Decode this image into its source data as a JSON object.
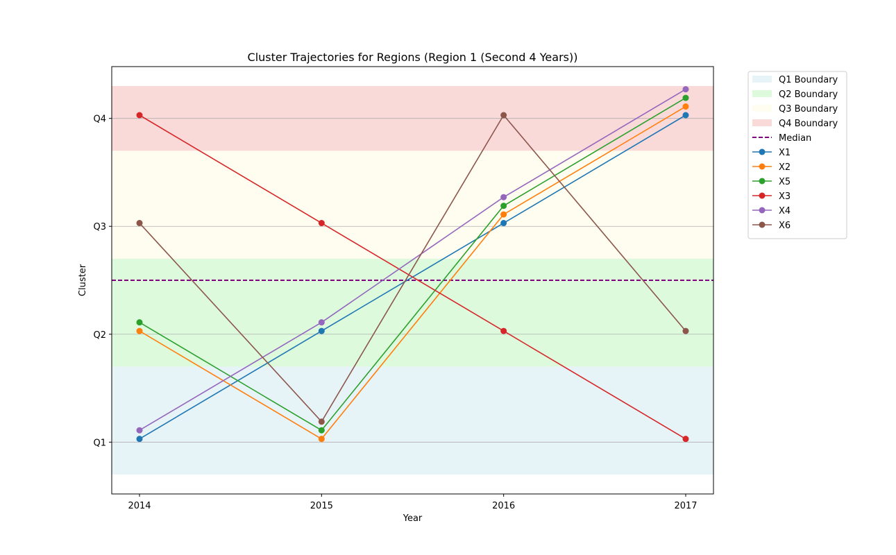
{
  "chart_data": {
    "type": "line",
    "title": "Cluster Trajectories for Regions (Region 1 (Second 4 Years))",
    "xlabel": "Year",
    "ylabel": "Cluster",
    "categories": [
      "2014",
      "2015",
      "2016",
      "2017"
    ],
    "y_ticks": [
      {
        "value": 1,
        "label": "Q1"
      },
      {
        "value": 2,
        "label": "Q2"
      },
      {
        "value": 3,
        "label": "Q3"
      },
      {
        "value": 4,
        "label": "Q4"
      }
    ],
    "ylim": [
      0.52,
      4.48
    ],
    "grid": "horizontal",
    "legend_position": "outside-top-right",
    "bands": [
      {
        "name": "Q1 Boundary",
        "from": 0.7,
        "to": 1.7,
        "color": "#add8e6",
        "opacity": 0.3
      },
      {
        "name": "Q2 Boundary",
        "from": 1.7,
        "to": 2.7,
        "color": "#90ee90",
        "opacity": 0.3
      },
      {
        "name": "Q3 Boundary",
        "from": 2.7,
        "to": 3.7,
        "color": "#fffacd",
        "opacity": 0.3
      },
      {
        "name": "Q4 Boundary",
        "from": 3.7,
        "to": 4.3,
        "color": "#f08080",
        "opacity": 0.3
      }
    ],
    "median": {
      "name": "Median",
      "value": 2.5,
      "color": "#800080"
    },
    "series": [
      {
        "name": "X1",
        "color": "#1f77b4",
        "values": [
          1.03,
          2.03,
          3.03,
          4.03
        ]
      },
      {
        "name": "X2",
        "color": "#ff7f0e",
        "values": [
          2.03,
          1.03,
          3.11,
          4.11
        ]
      },
      {
        "name": "X5",
        "color": "#2ca02c",
        "values": [
          2.11,
          1.11,
          3.19,
          4.19
        ]
      },
      {
        "name": "X3",
        "color": "#d62728",
        "values": [
          4.03,
          3.03,
          2.03,
          1.03
        ]
      },
      {
        "name": "X4",
        "color": "#9467bd",
        "values": [
          1.11,
          2.11,
          3.27,
          4.27
        ]
      },
      {
        "name": "X6",
        "color": "#8c564b",
        "values": [
          3.03,
          1.19,
          4.03,
          2.03
        ]
      }
    ]
  }
}
